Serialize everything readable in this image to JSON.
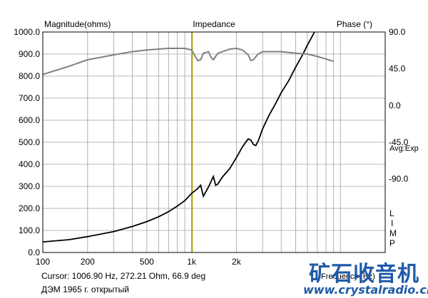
{
  "chart_data": {
    "type": "line",
    "title": "Impedance",
    "ylabel_left": "Magnitude(ohms)",
    "ylabel_right": "Phase (°)",
    "xlabel": "Frequency (Hz)",
    "x_scale": "log",
    "xlim": [
      100,
      20000
    ],
    "ylim_left": [
      0,
      1000
    ],
    "ylim_right": [
      -180,
      90
    ],
    "x_ticks": [
      100,
      200,
      500,
      1000,
      2000
    ],
    "x_tick_labels": [
      "100",
      "200",
      "500",
      "1k",
      "2k"
    ],
    "y_ticks_left": [
      0,
      100,
      200,
      300,
      400,
      500,
      600,
      700,
      800,
      900,
      1000
    ],
    "y_tick_labels_left": [
      "0.0",
      "100.0",
      "200.0",
      "300.0",
      "400.0",
      "500.0",
      "600.0",
      "700.0",
      "800.0",
      "900.0",
      "1000.0"
    ],
    "y_ticks_right": [
      -90,
      -45,
      0,
      45,
      90
    ],
    "y_tick_labels_right": [
      "-90.0",
      "-45.0",
      "0.0",
      "45.0",
      "90.0"
    ],
    "grid": true,
    "cursor_frequency": 1006.9,
    "side_labels": [
      "Avg:Exp",
      "L",
      "I",
      "M",
      "P"
    ],
    "series": [
      {
        "name": "Magnitude",
        "axis": "left",
        "color": "#000000",
        "points": [
          [
            100,
            48
          ],
          [
            150,
            58
          ],
          [
            200,
            72
          ],
          [
            300,
            95
          ],
          [
            400,
            118
          ],
          [
            500,
            140
          ],
          [
            600,
            162
          ],
          [
            700,
            185
          ],
          [
            800,
            210
          ],
          [
            900,
            235
          ],
          [
            1000,
            268
          ],
          [
            1100,
            290
          ],
          [
            1150,
            305
          ],
          [
            1200,
            255
          ],
          [
            1300,
            298
          ],
          [
            1400,
            345
          ],
          [
            1450,
            305
          ],
          [
            1500,
            310
          ],
          [
            1600,
            340
          ],
          [
            1800,
            380
          ],
          [
            2000,
            430
          ],
          [
            2200,
            480
          ],
          [
            2400,
            515
          ],
          [
            2500,
            510
          ],
          [
            2600,
            490
          ],
          [
            2700,
            485
          ],
          [
            2800,
            505
          ],
          [
            3000,
            560
          ],
          [
            3300,
            620
          ],
          [
            3700,
            680
          ],
          [
            4000,
            725
          ],
          [
            4500,
            780
          ],
          [
            5000,
            840
          ],
          [
            5600,
            900
          ],
          [
            6000,
            940
          ],
          [
            6700,
            1000
          ]
        ]
      },
      {
        "name": "Phase",
        "axis": "right",
        "color": "#808080",
        "points": [
          [
            100,
            38
          ],
          [
            150,
            48
          ],
          [
            200,
            56
          ],
          [
            300,
            62
          ],
          [
            400,
            66
          ],
          [
            500,
            68
          ],
          [
            700,
            70
          ],
          [
            900,
            70
          ],
          [
            1000,
            68
          ],
          [
            1050,
            61
          ],
          [
            1100,
            55
          ],
          [
            1150,
            56
          ],
          [
            1200,
            64
          ],
          [
            1300,
            66
          ],
          [
            1350,
            59
          ],
          [
            1400,
            56
          ],
          [
            1500,
            64
          ],
          [
            1800,
            69
          ],
          [
            2000,
            70
          ],
          [
            2200,
            68
          ],
          [
            2400,
            62
          ],
          [
            2500,
            55
          ],
          [
            2600,
            56
          ],
          [
            2800,
            63
          ],
          [
            3000,
            66
          ],
          [
            4000,
            66
          ],
          [
            5000,
            64
          ],
          [
            6000,
            63
          ],
          [
            7000,
            60
          ],
          [
            8000,
            57
          ],
          [
            9000,
            54
          ]
        ]
      }
    ]
  },
  "footer": {
    "cursor_text": "Cursor: 1006.90 Hz, 272.21 Ohm, 66.9 deg",
    "description": "ДЭМ 1965 г. открытый"
  },
  "watermark": {
    "chinese": "矿石收音机",
    "url": "www.crystalradio.cn"
  },
  "colors": {
    "cursor_line": "#a8a800",
    "grid": "#a0a0a0",
    "plot_border": "#000000"
  }
}
